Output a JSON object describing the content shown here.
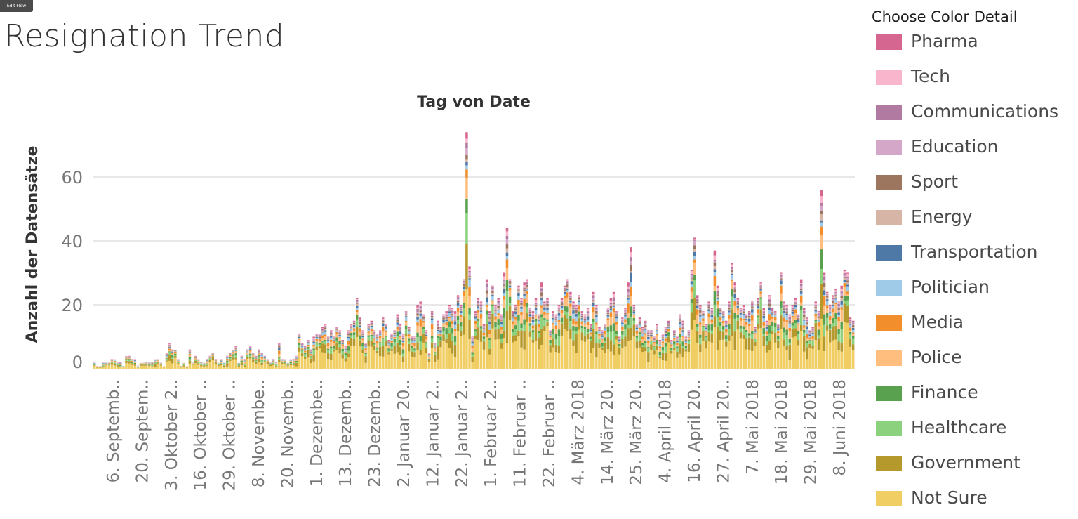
{
  "title": "Resignation Trend",
  "top_button_label": "Edit Flow",
  "legend": {
    "title": "Choose Color Detail",
    "items": [
      {
        "label": "Pharma",
        "color": "#d4668f"
      },
      {
        "label": "Tech",
        "color": "#f9b5cb"
      },
      {
        "label": "Communications",
        "color": "#b07aa1"
      },
      {
        "label": "Education",
        "color": "#d4a6c8"
      },
      {
        "label": "Sport",
        "color": "#9d7660"
      },
      {
        "label": "Energy",
        "color": "#d7b5a6"
      },
      {
        "label": "Transportation",
        "color": "#4e79a7"
      },
      {
        "label": "Politician",
        "color": "#a0cbe8"
      },
      {
        "label": "Media",
        "color": "#f28e2b"
      },
      {
        "label": "Police",
        "color": "#ffbe7d"
      },
      {
        "label": "Finance",
        "color": "#59a14f"
      },
      {
        "label": "Healthcare",
        "color": "#8cd17d"
      },
      {
        "label": "Government",
        "color": "#b6992d"
      },
      {
        "label": "Not Sure",
        "color": "#f1ce63"
      }
    ]
  },
  "chart_data": {
    "type": "bar",
    "stacked": true,
    "title": "Tag von Date",
    "xlabel": "Tag von Date",
    "ylabel": "Anzahl der Datensätze",
    "ylim": [
      0,
      78
    ],
    "yticks": [
      0,
      20,
      40,
      60
    ],
    "grid": true,
    "legend_position": "right",
    "x_tick_labels": [
      "6. Septemb..",
      "20. Septem..",
      "3. Oktober 2..",
      "16. Oktober ..",
      "29. Oktober ..",
      "8. Novembe..",
      "20. Novemb..",
      "1. Dezembe..",
      "13. Dezemb..",
      "23. Dezemb..",
      "2. Januar 20..",
      "12. Januar 2..",
      "22. Januar 2..",
      "1. Februar 2..",
      "11. Februar ..",
      "22. Februar ..",
      "4. März 2018",
      "14. März 20..",
      "25. März 20..",
      "4. April 2018",
      "16. April 20..",
      "27. April 20..",
      "7. Mai 2018",
      "18. Mai 2018",
      "29. Mai 2018",
      "8. Juni 2018"
    ],
    "series_order": [
      "Not Sure",
      "Government",
      "Healthcare",
      "Finance",
      "Police",
      "Media",
      "Politician",
      "Transportation",
      "Energy",
      "Sport",
      "Education",
      "Communications",
      "Tech",
      "Pharma"
    ],
    "daily_totals": [
      2,
      1,
      1,
      2,
      2,
      2,
      3,
      3,
      2,
      2,
      1,
      4,
      4,
      3,
      3,
      1,
      2,
      2,
      2,
      2,
      2,
      3,
      3,
      2,
      1,
      5,
      8,
      6,
      6,
      3,
      1,
      2,
      1,
      6,
      2,
      4,
      3,
      2,
      2,
      3,
      4,
      5,
      3,
      2,
      3,
      2,
      4,
      5,
      6,
      7,
      2,
      4,
      3,
      6,
      7,
      5,
      4,
      6,
      5,
      4,
      3,
      2,
      3,
      2,
      8,
      3,
      3,
      2,
      3,
      3,
      4,
      11,
      8,
      7,
      9,
      6,
      10,
      11,
      11,
      13,
      14,
      10,
      12,
      10,
      13,
      12,
      9,
      7,
      12,
      14,
      15,
      22,
      16,
      12,
      8,
      14,
      15,
      12,
      11,
      12,
      16,
      14,
      9,
      11,
      12,
      17,
      14,
      11,
      18,
      13,
      10,
      10,
      20,
      21,
      17,
      12,
      5,
      18,
      8,
      15,
      13,
      17,
      18,
      20,
      19,
      18,
      23,
      20,
      28,
      74,
      32,
      10,
      18,
      22,
      21,
      14,
      28,
      18,
      26,
      20,
      22,
      17,
      30,
      44,
      28,
      18,
      20,
      26,
      22,
      27,
      28,
      19,
      18,
      22,
      17,
      27,
      21,
      22,
      12,
      18,
      17,
      20,
      22,
      26,
      28,
      24,
      21,
      20,
      23,
      18,
      17,
      19,
      14,
      24,
      20,
      13,
      12,
      14,
      19,
      22,
      24,
      18,
      10,
      16,
      19,
      27,
      38,
      20,
      14,
      16,
      13,
      15,
      12,
      12,
      10,
      14,
      9,
      11,
      13,
      15,
      9,
      12,
      10,
      17,
      15,
      10,
      12,
      31,
      41,
      23,
      20,
      18,
      14,
      21,
      19,
      37,
      26,
      19,
      18,
      15,
      21,
      33,
      27,
      22,
      19,
      20,
      17,
      18,
      21,
      13,
      22,
      27,
      19,
      15,
      23,
      19,
      18,
      14,
      30,
      21,
      20,
      17,
      20,
      22,
      17,
      28,
      19,
      16,
      12,
      13,
      21,
      18,
      56,
      30,
      24,
      20,
      23,
      25,
      21,
      26,
      31,
      30,
      16,
      15
    ]
  }
}
